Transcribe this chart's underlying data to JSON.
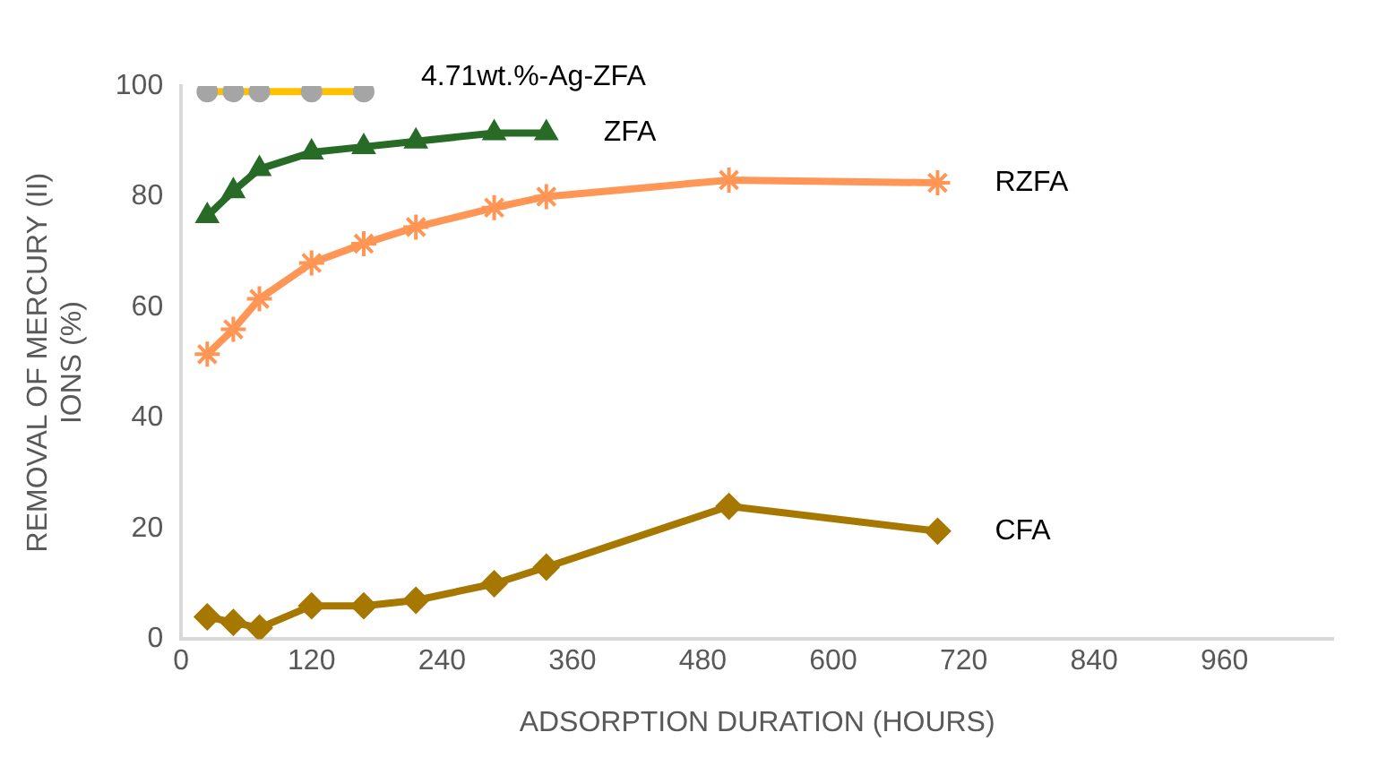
{
  "chart_data": {
    "type": "line",
    "xlabel": "ADSORPTION DURATION (HOURS)",
    "ylabel": "REMOVAL OF MERCURY (II) IONS (%)",
    "xlim": [
      0,
      1060
    ],
    "xticks": [
      0,
      120,
      240,
      360,
      480,
      600,
      720,
      840,
      960
    ],
    "ylim": [
      0,
      100
    ],
    "yticks": [
      0,
      20,
      40,
      60,
      80,
      100
    ],
    "grid": false,
    "legend": false,
    "series": [
      {
        "name": "4.71wt.%-Ag-ZFA",
        "color": "#ffc000",
        "marker": "circle",
        "x": [
          24,
          48,
          72,
          120,
          168
        ],
        "values": [
          99,
          99,
          99,
          99,
          99
        ]
      },
      {
        "name": "ZFA",
        "color": "#276b27",
        "marker": "triangle",
        "x": [
          24,
          48,
          72,
          120,
          168,
          216,
          288,
          336
        ],
        "values": [
          76.5,
          81,
          85,
          88,
          89,
          90,
          91.5,
          91.5
        ]
      },
      {
        "name": "RZFA",
        "color": "#ff9655",
        "marker": "cross",
        "x": [
          24,
          48,
          72,
          120,
          168,
          216,
          288,
          336,
          504,
          696
        ],
        "values": [
          51.5,
          56,
          61.5,
          68,
          71.5,
          74.5,
          78,
          80,
          83,
          82.5
        ]
      },
      {
        "name": "CFA",
        "color": "#a67800",
        "marker": "diamond",
        "x": [
          24,
          48,
          72,
          120,
          168,
          216,
          288,
          336,
          504,
          696
        ],
        "values": [
          4,
          3,
          2,
          6,
          6,
          7,
          10,
          13,
          24,
          19.5
        ]
      }
    ]
  }
}
